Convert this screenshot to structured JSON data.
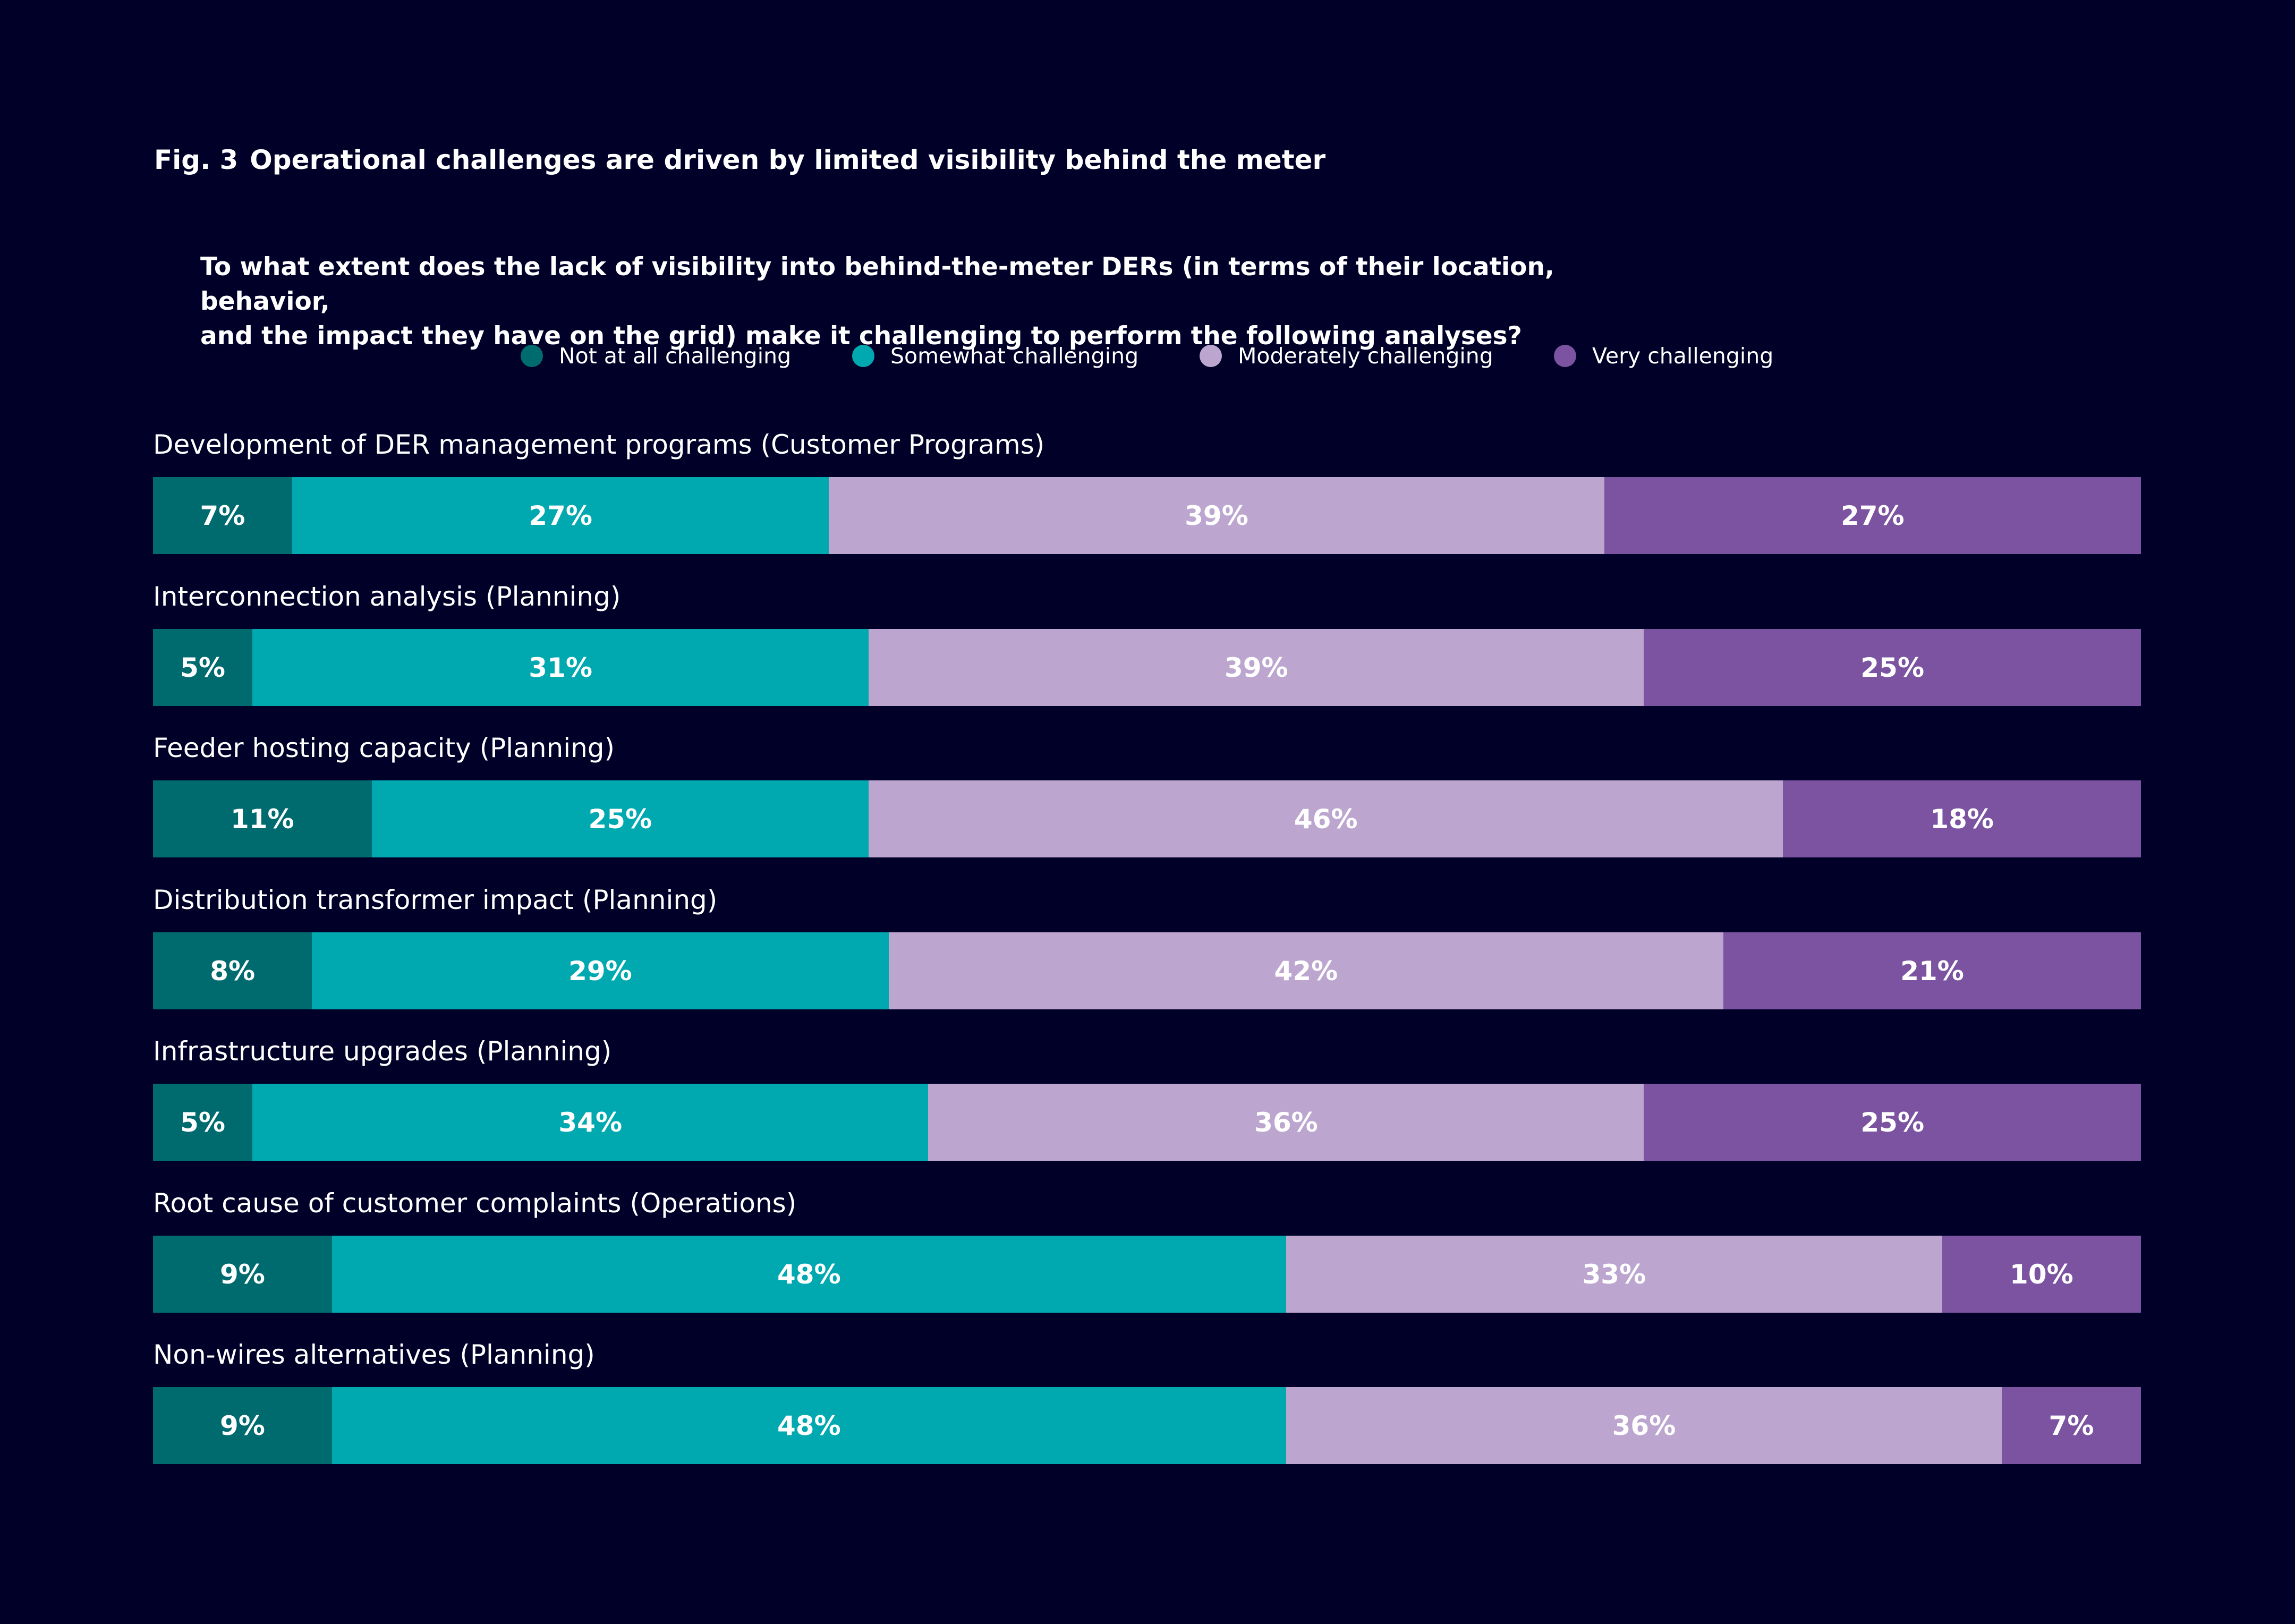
{
  "header": {
    "fig_number": "Fig. 3",
    "title": "Operational challenges are driven by limited visibility behind the meter",
    "question_line1": "To what extent does the lack of visibility into behind-the-meter DERs (in terms of their location, behavior,",
    "question_line2": "and the impact they have on the grid) make it challenging to perform the following analyses?"
  },
  "colors": {
    "background": "#000028",
    "text": "#ffffff",
    "not_at_all": "#006b6f",
    "somewhat": "#00a9b0",
    "moderately": "#bca6cf",
    "very": "#7b53a1"
  },
  "chart_data": {
    "type": "bar",
    "orientation": "horizontal",
    "stacked": true,
    "normalized_to": 100,
    "value_unit": "%",
    "title": "Operational challenges are driven by limited visibility behind the meter",
    "legend_placement": "top-center",
    "grid": false,
    "xlim": [
      0,
      100
    ],
    "categories": [
      "Development of DER management programs (Customer Programs)",
      "Interconnection analysis (Planning)",
      "Feeder hosting capacity (Planning)",
      "Distribution transformer impact (Planning)",
      "Infrastructure upgrades (Planning)",
      "Root cause of customer complaints (Operations)",
      "Non-wires alternatives (Planning)"
    ],
    "series": [
      {
        "name": "Not at all challenging",
        "color": "#006b6f",
        "values": [
          7,
          5,
          11,
          8,
          5,
          9,
          9
        ]
      },
      {
        "name": "Somewhat challenging",
        "color": "#00a9b0",
        "values": [
          27,
          31,
          25,
          29,
          34,
          48,
          48
        ]
      },
      {
        "name": "Moderately challenging",
        "color": "#bca6cf",
        "values": [
          39,
          39,
          46,
          42,
          36,
          33,
          36
        ]
      },
      {
        "name": "Very challenging",
        "color": "#7b53a1",
        "values": [
          27,
          25,
          18,
          21,
          25,
          10,
          7
        ]
      }
    ]
  }
}
